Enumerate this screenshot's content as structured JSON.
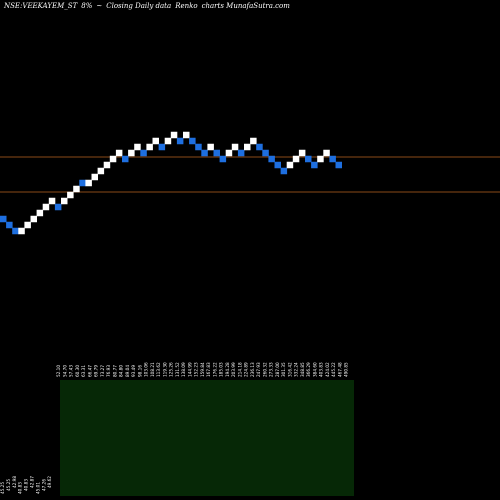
{
  "header": {
    "symbol": "NSE:VEEKAYEM_ST",
    "change": "8%",
    "arrow": "~",
    "subtitle": "Closing Daily data",
    "chart_kind": "Renko",
    "charts_by": "charts MunafaSutra.com"
  },
  "colors": {
    "background": "#000000",
    "up_brick": "#ffffff",
    "down_brick": "#1e6fe0",
    "level_line": "#8a4a18",
    "volume_panel": "#062806",
    "label_text": "#ffffff"
  },
  "chart_data": {
    "type": "renko",
    "levels": [
      157,
      192
    ],
    "bricks": [
      {
        "dir": "down",
        "y": 219
      },
      {
        "dir": "down",
        "y": 225
      },
      {
        "dir": "down",
        "y": 231
      },
      {
        "dir": "up",
        "y": 231
      },
      {
        "dir": "up",
        "y": 225
      },
      {
        "dir": "up",
        "y": 219
      },
      {
        "dir": "up",
        "y": 213
      },
      {
        "dir": "up",
        "y": 207
      },
      {
        "dir": "up",
        "y": 201
      },
      {
        "dir": "down",
        "y": 207
      },
      {
        "dir": "up",
        "y": 201
      },
      {
        "dir": "up",
        "y": 195
      },
      {
        "dir": "up",
        "y": 189
      },
      {
        "dir": "down",
        "y": 183
      },
      {
        "dir": "up",
        "y": 183
      },
      {
        "dir": "up",
        "y": 177
      },
      {
        "dir": "up",
        "y": 171
      },
      {
        "dir": "up",
        "y": 165
      },
      {
        "dir": "up",
        "y": 159
      },
      {
        "dir": "up",
        "y": 153
      },
      {
        "dir": "down",
        "y": 159
      },
      {
        "dir": "up",
        "y": 153
      },
      {
        "dir": "up",
        "y": 147
      },
      {
        "dir": "down",
        "y": 153
      },
      {
        "dir": "up",
        "y": 147
      },
      {
        "dir": "up",
        "y": 141
      },
      {
        "dir": "down",
        "y": 147
      },
      {
        "dir": "up",
        "y": 141
      },
      {
        "dir": "up",
        "y": 135
      },
      {
        "dir": "down",
        "y": 141
      },
      {
        "dir": "up",
        "y": 135
      },
      {
        "dir": "down",
        "y": 141
      },
      {
        "dir": "down",
        "y": 147
      },
      {
        "dir": "down",
        "y": 153
      },
      {
        "dir": "up",
        "y": 147
      },
      {
        "dir": "down",
        "y": 153
      },
      {
        "dir": "down",
        "y": 159
      },
      {
        "dir": "up",
        "y": 153
      },
      {
        "dir": "up",
        "y": 147
      },
      {
        "dir": "down",
        "y": 153
      },
      {
        "dir": "up",
        "y": 147
      },
      {
        "dir": "up",
        "y": 141
      },
      {
        "dir": "down",
        "y": 147
      },
      {
        "dir": "down",
        "y": 153
      },
      {
        "dir": "down",
        "y": 159
      },
      {
        "dir": "down",
        "y": 165
      },
      {
        "dir": "down",
        "y": 171
      },
      {
        "dir": "up",
        "y": 165
      },
      {
        "dir": "up",
        "y": 159
      },
      {
        "dir": "up",
        "y": 153
      },
      {
        "dir": "down",
        "y": 159
      },
      {
        "dir": "down",
        "y": 165
      },
      {
        "dir": "up",
        "y": 159
      },
      {
        "dir": "up",
        "y": 153
      },
      {
        "dir": "down",
        "y": 159
      },
      {
        "dir": "down",
        "y": 165
      }
    ],
    "price_labels": [
      "45.25",
      "45.25",
      "42.98",
      "40.83",
      "40.83",
      "42.87",
      "45.01",
      "47.26",
      "49.62",
      "52.10",
      "54.70",
      "57.43",
      "60.30",
      "63.31",
      "66.47",
      "69.79",
      "73.27",
      "76.93",
      "80.77",
      "84.80",
      "89.04",
      "93.49",
      "98.16",
      "103.06",
      "108.21",
      "113.62",
      "119.30",
      "125.26",
      "131.52",
      "138.09",
      "144.99",
      "152.23",
      "159.84",
      "167.83",
      "176.22",
      "185.03",
      "194.28",
      "203.99",
      "214.18",
      "224.89",
      "236.13",
      "247.93",
      "260.32",
      "273.33",
      "287.00",
      "301.35",
      "316.42",
      "332.24",
      "348.85",
      "366.29",
      "384.60",
      "403.83",
      "424.02",
      "445.22",
      "467.48",
      "490.85"
    ]
  }
}
